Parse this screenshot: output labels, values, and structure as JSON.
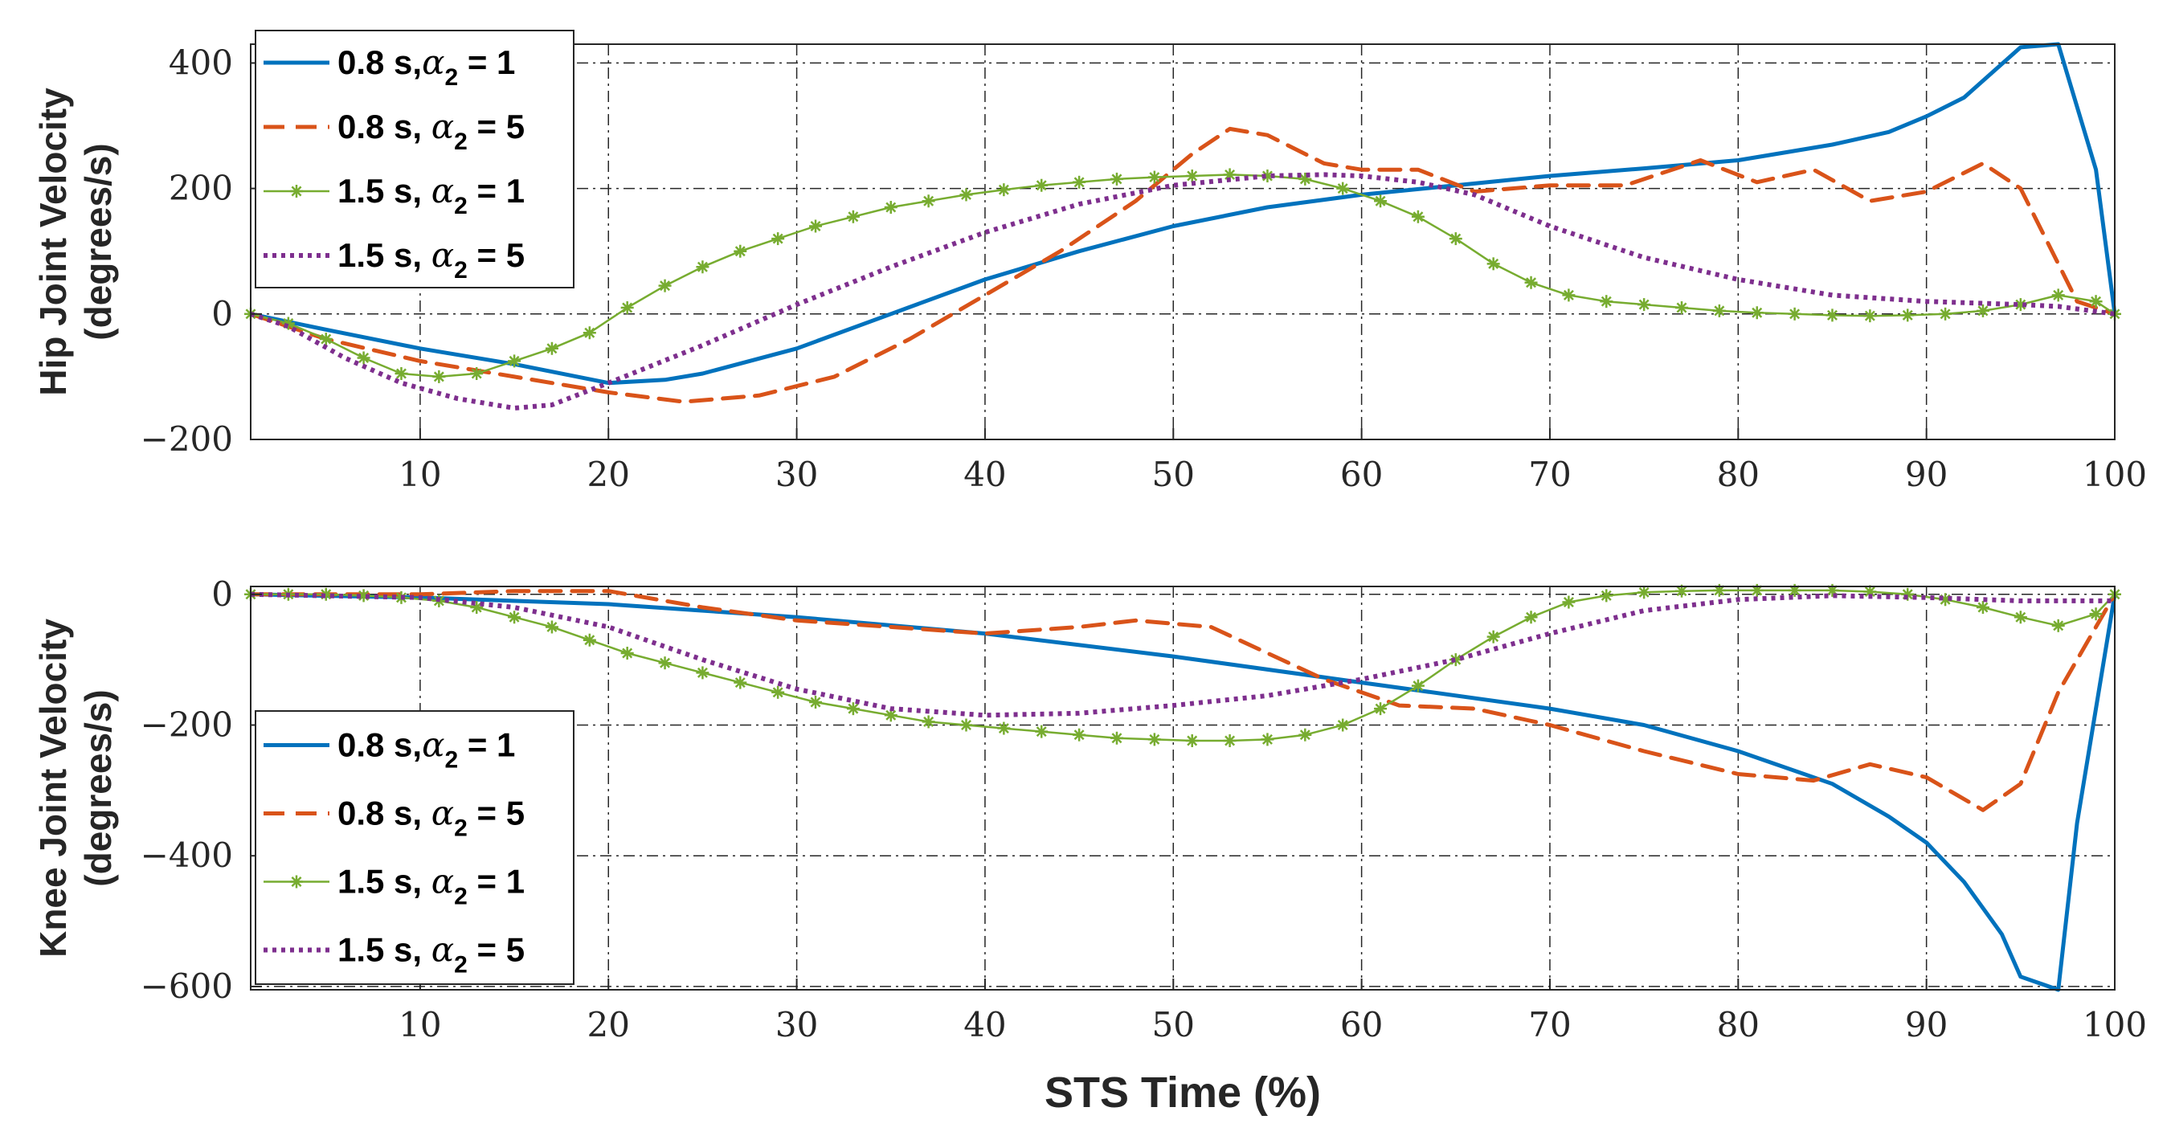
{
  "chart_data": [
    {
      "type": "line",
      "ylabel_line1": "Hip Joint Velocity",
      "ylabel_line2": "(degrees/s)",
      "xlabel": "",
      "xlim": [
        1,
        100
      ],
      "ylim": [
        -200,
        430
      ],
      "xticks": [
        10,
        20,
        30,
        40,
        50,
        60,
        70,
        80,
        90,
        100
      ],
      "yticks": [
        400,
        200,
        0,
        -200
      ],
      "ytick_labels": [
        "400",
        "200",
        "0",
        "−200"
      ],
      "legend_position": "top-left",
      "series": [
        {
          "name": "0.8 s,α = 1",
          "label_prefix": "0.8 s,",
          "alpha_sub": "2",
          "label_suffix": " = 1",
          "color": "#0072BD",
          "style": "solid",
          "marker": "none",
          "x": [
            1,
            5,
            10,
            15,
            20,
            23,
            25,
            30,
            35,
            40,
            45,
            50,
            55,
            60,
            65,
            70,
            75,
            80,
            85,
            88,
            90,
            92,
            95,
            97,
            99,
            100
          ],
          "y": [
            0,
            -25,
            -55,
            -80,
            -110,
            -105,
            -95,
            -55,
            0,
            55,
            100,
            140,
            170,
            190,
            205,
            220,
            232,
            245,
            270,
            290,
            315,
            345,
            425,
            430,
            230,
            0
          ]
        },
        {
          "name": "0.8 s, α = 5",
          "label_prefix": "0.8 s, ",
          "alpha_sub": "2",
          "label_suffix": " = 5",
          "color": "#D95319",
          "style": "dashed",
          "marker": "none",
          "x": [
            1,
            5,
            10,
            15,
            20,
            24,
            28,
            32,
            36,
            40,
            44,
            48,
            51,
            53,
            55,
            58,
            60,
            63,
            66,
            70,
            74,
            78,
            81,
            84,
            87,
            90,
            93,
            95,
            97,
            98,
            100
          ],
          "y": [
            0,
            -40,
            -75,
            -100,
            -125,
            -140,
            -130,
            -100,
            -40,
            30,
            100,
            180,
            255,
            295,
            285,
            240,
            230,
            230,
            195,
            205,
            205,
            245,
            210,
            230,
            180,
            195,
            240,
            200,
            80,
            20,
            0
          ]
        },
        {
          "name": "1.5 s, α = 1",
          "label_prefix": "1.5 s, ",
          "alpha_sub": "2",
          "label_suffix": " = 1",
          "color": "#77AC30",
          "style": "solid",
          "marker": "asterisk",
          "x": [
            1,
            3,
            5,
            7,
            9,
            11,
            13,
            15,
            17,
            19,
            21,
            23,
            25,
            27,
            29,
            31,
            33,
            35,
            37,
            39,
            41,
            43,
            45,
            47,
            49,
            51,
            53,
            55,
            57,
            59,
            61,
            63,
            65,
            67,
            69,
            71,
            73,
            75,
            77,
            79,
            81,
            83,
            85,
            87,
            89,
            91,
            93,
            95,
            97,
            99,
            100
          ],
          "y": [
            0,
            -15,
            -40,
            -70,
            -95,
            -100,
            -95,
            -75,
            -55,
            -30,
            10,
            45,
            75,
            100,
            120,
            140,
            155,
            170,
            180,
            190,
            198,
            205,
            210,
            215,
            218,
            220,
            222,
            220,
            215,
            200,
            180,
            155,
            120,
            80,
            50,
            30,
            20,
            15,
            10,
            5,
            2,
            0,
            -2,
            -3,
            -2,
            0,
            5,
            15,
            30,
            20,
            0
          ]
        },
        {
          "name": "1.5 s, α = 5",
          "label_prefix": "1.5 s, ",
          "alpha_sub": "2",
          "label_suffix": " = 5",
          "color": "#7E2F8E",
          "style": "dotted",
          "marker": "none",
          "x": [
            1,
            3,
            6,
            9,
            12,
            15,
            17,
            20,
            25,
            30,
            35,
            40,
            45,
            50,
            55,
            58,
            60,
            63,
            66,
            70,
            75,
            80,
            85,
            90,
            95,
            97,
            100
          ],
          "y": [
            0,
            -20,
            -70,
            -110,
            -135,
            -150,
            -145,
            -110,
            -50,
            15,
            75,
            130,
            175,
            205,
            220,
            222,
            220,
            210,
            190,
            140,
            90,
            55,
            30,
            20,
            15,
            12,
            0
          ]
        }
      ]
    },
    {
      "type": "line",
      "ylabel_line1": "Knee Joint Velocity",
      "ylabel_line2": "(degrees/s)",
      "xlabel": "STS Time (%)",
      "xlim": [
        1,
        100
      ],
      "ylim": [
        -605,
        12
      ],
      "xticks": [
        10,
        20,
        30,
        40,
        50,
        60,
        70,
        80,
        90,
        100
      ],
      "yticks": [
        0,
        -200,
        -400,
        -600
      ],
      "ytick_labels": [
        "0",
        "−200",
        "−400",
        "−600"
      ],
      "legend_position": "bottom-left",
      "series": [
        {
          "name": "0.8 s,α = 1",
          "label_prefix": "0.8 s,",
          "alpha_sub": "2",
          "label_suffix": " = 1",
          "color": "#0072BD",
          "style": "solid",
          "marker": "none",
          "x": [
            1,
            10,
            20,
            30,
            40,
            50,
            60,
            70,
            75,
            80,
            85,
            88,
            90,
            92,
            94,
            95,
            97,
            98,
            100
          ],
          "y": [
            0,
            -5,
            -15,
            -35,
            -60,
            -95,
            -135,
            -175,
            -200,
            -240,
            -290,
            -340,
            -380,
            -440,
            -520,
            -585,
            -605,
            -350,
            0
          ]
        },
        {
          "name": "0.8 s, α = 5",
          "label_prefix": "0.8 s, ",
          "alpha_sub": "2",
          "label_suffix": " = 5",
          "color": "#D95319",
          "style": "dashed",
          "marker": "none",
          "x": [
            1,
            10,
            15,
            20,
            25,
            30,
            35,
            40,
            45,
            48,
            52,
            55,
            58,
            62,
            66,
            70,
            75,
            80,
            84,
            87,
            90,
            93,
            95,
            97,
            100
          ],
          "y": [
            0,
            0,
            5,
            5,
            -20,
            -40,
            -50,
            -60,
            -50,
            -40,
            -50,
            -90,
            -130,
            -170,
            -175,
            -200,
            -240,
            -275,
            -285,
            -260,
            -280,
            -330,
            -290,
            -150,
            0
          ]
        },
        {
          "name": "1.5 s, α = 1",
          "label_prefix": "1.5 s, ",
          "alpha_sub": "2",
          "label_suffix": " = 1",
          "color": "#77AC30",
          "style": "solid",
          "marker": "asterisk",
          "x": [
            1,
            3,
            5,
            7,
            9,
            11,
            13,
            15,
            17,
            19,
            21,
            23,
            25,
            27,
            29,
            31,
            33,
            35,
            37,
            39,
            41,
            43,
            45,
            47,
            49,
            51,
            53,
            55,
            57,
            59,
            61,
            63,
            65,
            67,
            69,
            71,
            73,
            75,
            77,
            79,
            81,
            83,
            85,
            87,
            89,
            91,
            93,
            95,
            97,
            99,
            100
          ],
          "y": [
            0,
            0,
            0,
            -2,
            -5,
            -10,
            -20,
            -35,
            -50,
            -70,
            -90,
            -105,
            -120,
            -135,
            -150,
            -165,
            -175,
            -185,
            -195,
            -200,
            -205,
            -210,
            -215,
            -220,
            -222,
            -224,
            -224,
            -222,
            -215,
            -200,
            -175,
            -140,
            -100,
            -65,
            -35,
            -12,
            -2,
            3,
            5,
            6,
            6,
            6,
            6,
            4,
            0,
            -8,
            -20,
            -35,
            -48,
            -30,
            0
          ]
        },
        {
          "name": "1.5 s, α = 5",
          "label_prefix": "1.5 s, ",
          "alpha_sub": "2",
          "label_suffix": " = 5",
          "color": "#7E2F8E",
          "style": "dotted",
          "marker": "none",
          "x": [
            1,
            10,
            15,
            20,
            25,
            30,
            35,
            40,
            45,
            50,
            55,
            60,
            65,
            70,
            75,
            80,
            85,
            90,
            95,
            100
          ],
          "y": [
            0,
            -5,
            -20,
            -50,
            -100,
            -145,
            -175,
            -185,
            -182,
            -170,
            -155,
            -130,
            -100,
            -60,
            -25,
            -8,
            -2,
            -5,
            -10,
            -10
          ]
        }
      ]
    }
  ]
}
